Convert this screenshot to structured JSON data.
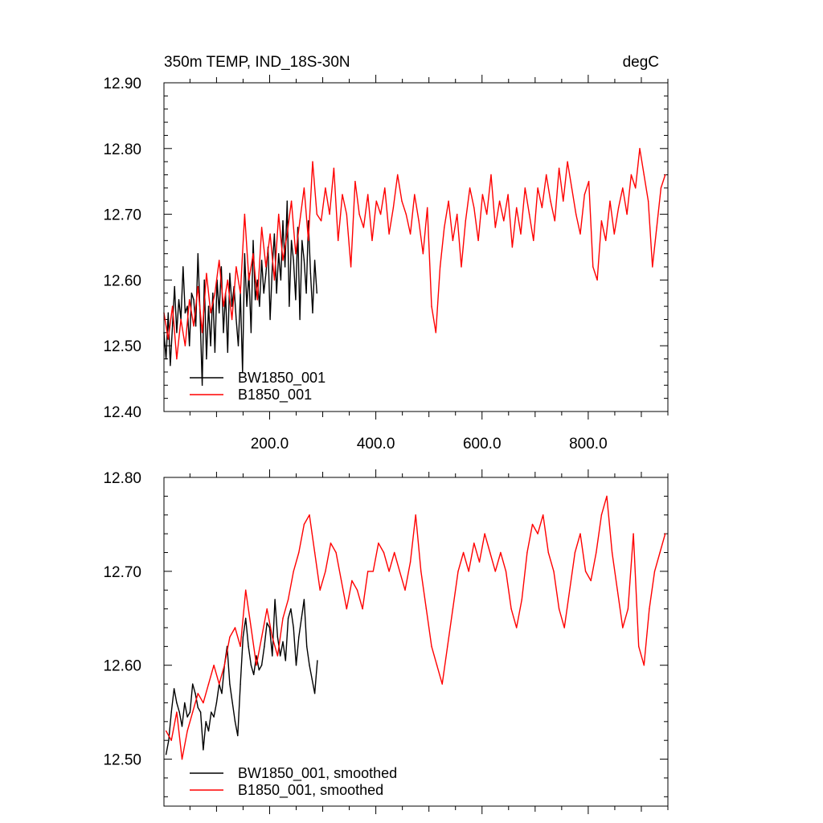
{
  "figure": {
    "title_left": "350m TEMP, IND_18S-30N",
    "title_right": "degC"
  },
  "chart_data": [
    {
      "type": "line",
      "panel": "top",
      "title": "350m TEMP, IND_18S-30N",
      "units": "degC",
      "xlabel": "",
      "ylabel": "",
      "xlim": [
        1,
        950
      ],
      "ylim": [
        12.4,
        12.9
      ],
      "xticks": [
        200,
        400,
        600,
        800
      ],
      "xtick_labels": [
        "200.0",
        "400.0",
        "600.0",
        "800.0"
      ],
      "yticks": [
        12.4,
        12.5,
        12.6,
        12.7,
        12.8,
        12.9
      ],
      "ytick_labels": [
        "12.40",
        "12.50",
        "12.60",
        "12.70",
        "12.80",
        "12.90"
      ],
      "legend_position": "bottom-left",
      "series": [
        {
          "name": "BW1850_001",
          "color": "#000000",
          "x": [
            1,
            5,
            9,
            13,
            17,
            21,
            25,
            29,
            33,
            37,
            41,
            45,
            49,
            53,
            57,
            61,
            65,
            69,
            73,
            77,
            81,
            85,
            89,
            93,
            97,
            101,
            105,
            109,
            113,
            117,
            121,
            125,
            129,
            133,
            137,
            141,
            145,
            149,
            153,
            157,
            161,
            165,
            169,
            173,
            177,
            181,
            185,
            189,
            193,
            197,
            201,
            205,
            209,
            213,
            217,
            221,
            225,
            229,
            233,
            237,
            241,
            245,
            249,
            253,
            257,
            261,
            265,
            269,
            273,
            277,
            281,
            285,
            289
          ],
          "values": [
            12.52,
            12.48,
            12.55,
            12.47,
            12.53,
            12.59,
            12.52,
            12.57,
            12.54,
            12.62,
            12.55,
            12.56,
            12.5,
            12.58,
            12.57,
            12.53,
            12.64,
            12.55,
            12.44,
            12.6,
            12.48,
            12.56,
            12.5,
            12.58,
            12.49,
            12.6,
            12.55,
            12.62,
            12.52,
            12.58,
            12.49,
            12.61,
            12.56,
            12.59,
            12.54,
            12.5,
            12.58,
            12.46,
            12.64,
            12.56,
            12.61,
            12.52,
            12.66,
            12.57,
            12.6,
            12.56,
            12.63,
            12.58,
            12.61,
            12.65,
            12.54,
            12.62,
            12.67,
            12.58,
            12.64,
            12.6,
            12.69,
            12.62,
            12.72,
            12.56,
            12.66,
            12.63,
            12.57,
            12.68,
            12.54,
            12.66,
            12.63,
            12.58,
            12.69,
            12.61,
            12.55,
            12.63,
            12.58
          ]
        },
        {
          "name": "B1850_001",
          "color": "#ff0000",
          "x": [
            1,
            9,
            17,
            25,
            33,
            41,
            49,
            57,
            65,
            73,
            81,
            89,
            97,
            105,
            113,
            121,
            129,
            137,
            145,
            153,
            161,
            169,
            177,
            185,
            193,
            201,
            209,
            217,
            225,
            233,
            241,
            249,
            257,
            265,
            273,
            281,
            289,
            297,
            305,
            313,
            321,
            329,
            337,
            345,
            353,
            361,
            369,
            377,
            385,
            393,
            401,
            409,
            417,
            425,
            433,
            441,
            449,
            457,
            465,
            473,
            481,
            489,
            497,
            505,
            513,
            521,
            529,
            537,
            545,
            553,
            561,
            569,
            577,
            585,
            593,
            601,
            609,
            617,
            625,
            633,
            641,
            649,
            657,
            665,
            673,
            681,
            689,
            697,
            705,
            713,
            721,
            729,
            737,
            745,
            753,
            761,
            769,
            777,
            785,
            793,
            801,
            809,
            817,
            825,
            833,
            841,
            849,
            857,
            865,
            873,
            881,
            889,
            897,
            905,
            913,
            921,
            929,
            937,
            945
          ],
          "values": [
            12.55,
            12.51,
            12.56,
            12.48,
            12.54,
            12.5,
            12.57,
            12.53,
            12.59,
            12.52,
            12.61,
            12.55,
            12.58,
            12.63,
            12.56,
            12.6,
            12.54,
            12.62,
            12.58,
            12.7,
            12.6,
            12.64,
            12.57,
            12.68,
            12.62,
            12.67,
            12.6,
            12.7,
            12.63,
            12.67,
            12.72,
            12.64,
            12.69,
            12.74,
            12.66,
            12.78,
            12.7,
            12.69,
            12.74,
            12.7,
            12.77,
            12.66,
            12.73,
            12.7,
            12.62,
            12.75,
            12.7,
            12.68,
            12.73,
            12.66,
            12.72,
            12.7,
            12.74,
            12.67,
            12.71,
            12.76,
            12.72,
            12.7,
            12.67,
            12.73,
            12.69,
            12.64,
            12.71,
            12.56,
            12.52,
            12.62,
            12.68,
            12.72,
            12.66,
            12.7,
            12.62,
            12.69,
            12.74,
            12.71,
            12.66,
            12.73,
            12.7,
            12.76,
            12.68,
            12.72,
            12.69,
            12.73,
            12.65,
            12.71,
            12.67,
            12.74,
            12.7,
            12.66,
            12.74,
            12.71,
            12.76,
            12.72,
            12.69,
            12.77,
            12.72,
            12.78,
            12.74,
            12.7,
            12.67,
            12.73,
            12.75,
            12.62,
            12.6,
            12.69,
            12.66,
            12.72,
            12.67,
            12.71,
            12.74,
            12.7,
            12.76,
            12.74,
            12.8,
            12.76,
            12.72,
            12.62,
            12.68,
            12.74,
            12.76
          ]
        }
      ]
    },
    {
      "type": "line",
      "panel": "bottom",
      "xlabel": "",
      "ylabel": "",
      "xlim": [
        1,
        950
      ],
      "ylim": [
        12.45,
        12.8
      ],
      "xticks": [
        200,
        400,
        600,
        800
      ],
      "xtick_labels": [],
      "yticks": [
        12.5,
        12.6,
        12.7,
        12.8
      ],
      "ytick_labels": [
        "12.50",
        "12.60",
        "12.70",
        "12.80"
      ],
      "legend_position": "bottom-left",
      "series": [
        {
          "name": "BW1850_001, smoothed",
          "color": "#000000",
          "x": [
            5,
            10,
            15,
            20,
            25,
            30,
            35,
            40,
            45,
            50,
            55,
            60,
            65,
            70,
            75,
            80,
            85,
            90,
            95,
            100,
            105,
            110,
            115,
            120,
            125,
            130,
            135,
            140,
            145,
            150,
            155,
            160,
            165,
            170,
            175,
            180,
            185,
            190,
            195,
            200,
            205,
            210,
            215,
            220,
            225,
            230,
            235,
            240,
            245,
            250,
            255,
            260,
            265,
            270,
            275,
            280,
            285,
            290
          ],
          "values": [
            12.505,
            12.52,
            12.55,
            12.575,
            12.56,
            12.55,
            12.535,
            12.56,
            12.545,
            12.55,
            12.58,
            12.57,
            12.555,
            12.55,
            12.51,
            12.54,
            12.53,
            12.55,
            12.545,
            12.56,
            12.58,
            12.57,
            12.6,
            12.62,
            12.58,
            12.56,
            12.54,
            12.525,
            12.58,
            12.63,
            12.65,
            12.62,
            12.6,
            12.59,
            12.61,
            12.595,
            12.6,
            12.62,
            12.645,
            12.64,
            12.61,
            12.67,
            12.63,
            12.61,
            12.625,
            12.605,
            12.65,
            12.66,
            12.64,
            12.6,
            12.63,
            12.65,
            12.67,
            12.62,
            12.6,
            12.585,
            12.57,
            12.605
          ]
        },
        {
          "name": "B1850_001, smoothed",
          "color": "#ff0000",
          "x": [
            5,
            15,
            25,
            35,
            45,
            55,
            65,
            75,
            85,
            95,
            105,
            115,
            125,
            135,
            145,
            155,
            165,
            175,
            185,
            195,
            205,
            215,
            225,
            235,
            245,
            255,
            265,
            275,
            285,
            295,
            305,
            315,
            325,
            335,
            345,
            355,
            365,
            375,
            385,
            395,
            405,
            415,
            425,
            435,
            445,
            455,
            465,
            475,
            485,
            495,
            505,
            515,
            525,
            535,
            545,
            555,
            565,
            575,
            585,
            595,
            605,
            615,
            625,
            635,
            645,
            655,
            665,
            675,
            685,
            695,
            705,
            715,
            725,
            735,
            745,
            755,
            765,
            775,
            785,
            795,
            805,
            815,
            825,
            835,
            845,
            855,
            865,
            875,
            885,
            895,
            905,
            915,
            925,
            935,
            945
          ],
          "values": [
            12.53,
            12.52,
            12.55,
            12.5,
            12.53,
            12.55,
            12.57,
            12.56,
            12.58,
            12.6,
            12.58,
            12.6,
            12.63,
            12.64,
            12.62,
            12.68,
            12.64,
            12.6,
            12.63,
            12.66,
            12.63,
            12.61,
            12.65,
            12.67,
            12.7,
            12.72,
            12.75,
            12.76,
            12.72,
            12.68,
            12.7,
            12.73,
            12.72,
            12.69,
            12.66,
            12.69,
            12.68,
            12.66,
            12.7,
            12.7,
            12.73,
            12.72,
            12.7,
            12.72,
            12.7,
            12.68,
            12.71,
            12.76,
            12.7,
            12.66,
            12.62,
            12.6,
            12.58,
            12.62,
            12.66,
            12.7,
            12.72,
            12.7,
            12.73,
            12.71,
            12.74,
            12.72,
            12.7,
            12.72,
            12.7,
            12.66,
            12.64,
            12.67,
            12.72,
            12.75,
            12.74,
            12.76,
            12.72,
            12.7,
            12.66,
            12.64,
            12.68,
            12.72,
            12.74,
            12.7,
            12.69,
            12.72,
            12.76,
            12.78,
            12.72,
            12.68,
            12.64,
            12.66,
            12.74,
            12.62,
            12.6,
            12.66,
            12.7,
            12.72,
            12.74
          ]
        }
      ]
    }
  ]
}
